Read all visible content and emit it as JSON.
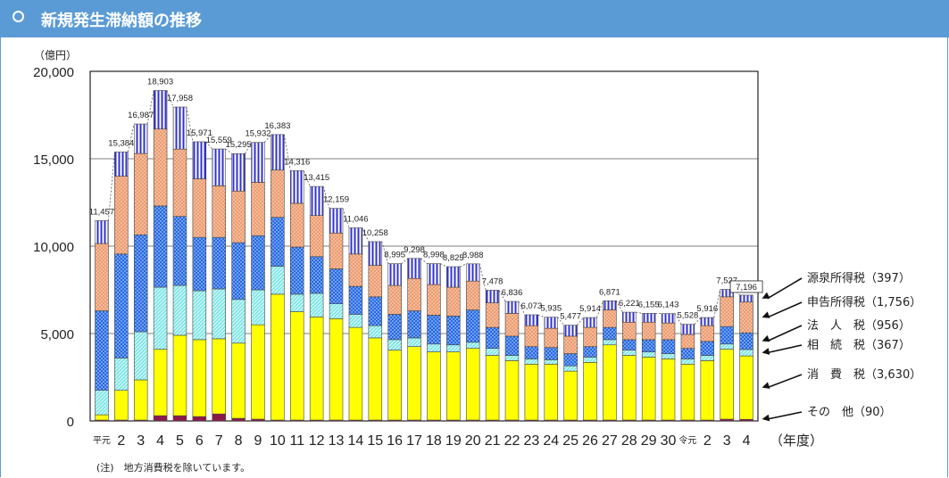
{
  "header": {
    "title": "新規発生滞納額の推移"
  },
  "note": "(注)　地方消費税を除いています。",
  "chart_data": {
    "type": "bar",
    "stacked": true,
    "yunit": "（億円）",
    "xunit": "（年度）",
    "ylim": [
      0,
      20000
    ],
    "yticks": [
      0,
      5000,
      10000,
      15000,
      20000
    ],
    "ytick_labels": [
      "0",
      "5,000",
      "10,000",
      "15,000",
      "20,000"
    ],
    "grid": true,
    "categories": [
      "平元",
      "2",
      "3",
      "4",
      "5",
      "6",
      "7",
      "8",
      "9",
      "10",
      "11",
      "12",
      "13",
      "14",
      "15",
      "16",
      "17",
      "18",
      "19",
      "20",
      "21",
      "22",
      "23",
      "24",
      "25",
      "26",
      "27",
      "28",
      "29",
      "30",
      "令元",
      "2",
      "3",
      "4"
    ],
    "totals": [
      11457,
      15384,
      16987,
      18903,
      17958,
      15971,
      15559,
      15295,
      15932,
      16383,
      14316,
      13415,
      12159,
      11046,
      10258,
      8995,
      9298,
      8998,
      8825,
      8988,
      7478,
      6836,
      6073,
      5935,
      5477,
      5914,
      6871,
      6221,
      6155,
      6143,
      5528,
      5916,
      7527,
      7196
    ],
    "total_labels": [
      "11,457",
      "15,384",
      "16,987",
      "18,903",
      "17,958",
      "15,971",
      "15,559",
      "15,295",
      "15,932",
      "16,383",
      "14,316",
      "13,415",
      "12,159",
      "11,046",
      "10,258",
      "8,995",
      "9,298",
      "8,998",
      "8,825",
      "8,988",
      "7,478",
      "6,836",
      "6,073",
      "5,935",
      "5,477",
      "5,914",
      "6,871",
      "6,221",
      "6,155",
      "6,143",
      "5,528",
      "5,916",
      "7,527",
      "7,196"
    ],
    "series": [
      {
        "name": "その　他",
        "last_label": "（90）",
        "color": "#8b1a4a",
        "values": [
          50,
          50,
          50,
          300,
          300,
          250,
          400,
          150,
          100,
          50,
          50,
          50,
          50,
          50,
          50,
          50,
          50,
          50,
          50,
          50,
          50,
          50,
          50,
          50,
          50,
          50,
          50,
          50,
          50,
          50,
          50,
          50,
          100,
          90
        ]
      },
      {
        "name": "消　費　税",
        "last_label": "（3,630）",
        "color": "#ffff00",
        "values": [
          300,
          1700,
          2300,
          3800,
          4600,
          4400,
          4300,
          4300,
          5400,
          7200,
          6200,
          5900,
          5800,
          5300,
          4700,
          4000,
          4200,
          3900,
          3900,
          4100,
          3700,
          3400,
          3200,
          3200,
          2800,
          3300,
          4300,
          3700,
          3600,
          3500,
          3200,
          3400,
          4000,
          3630
        ]
      },
      {
        "name": "相　続　税",
        "last_label": "（367）",
        "color": "#7fe6e6",
        "values": [
          1400,
          1850,
          2750,
          3550,
          2850,
          2800,
          2850,
          2500,
          2000,
          1600,
          1000,
          1350,
          850,
          750,
          700,
          600,
          500,
          450,
          400,
          350,
          400,
          300,
          300,
          250,
          300,
          300,
          300,
          300,
          300,
          300,
          300,
          300,
          300,
          367
        ]
      },
      {
        "name": "法　人　税",
        "last_label": "（956）",
        "color": "#1f5fdd",
        "values": [
          4550,
          5950,
          5550,
          4650,
          3950,
          3050,
          2950,
          3250,
          3100,
          2800,
          2700,
          2100,
          2000,
          1600,
          1650,
          1450,
          1550,
          1650,
          1650,
          1850,
          1200,
          1100,
          700,
          700,
          700,
          600,
          700,
          600,
          700,
          800,
          600,
          800,
          1000,
          956
        ]
      },
      {
        "name": "申告所得税",
        "last_label": "（1,756）",
        "color": "#f4b183",
        "values": [
          3850,
          4450,
          4650,
          4400,
          3850,
          3350,
          2950,
          2950,
          3050,
          2700,
          2500,
          2350,
          2050,
          1850,
          1800,
          1650,
          1850,
          1750,
          1650,
          1650,
          1400,
          1300,
          1200,
          1100,
          1000,
          1100,
          1000,
          1000,
          1000,
          950,
          800,
          900,
          1700,
          1756
        ]
      },
      {
        "name": "源泉所得税",
        "last_label": "（397）",
        "color": "#3333cc",
        "values": [
          1307,
          1384,
          1687,
          2203,
          2408,
          2121,
          2109,
          2145,
          2282,
          2033,
          1866,
          1665,
          1409,
          1496,
          1358,
          1245,
          1148,
          1198,
          1175,
          988,
          728,
          686,
          623,
          635,
          627,
          564,
          521,
          571,
          505,
          543,
          578,
          466,
          427,
          397
        ]
      }
    ]
  }
}
